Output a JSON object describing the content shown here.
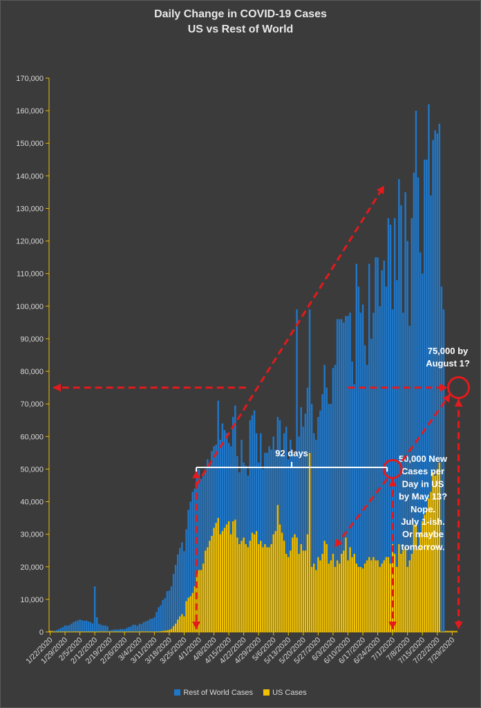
{
  "title_line1": "Daily Change in COVID-19 Cases",
  "title_line2": "US vs Rest of World",
  "colors": {
    "background": "#3b3b3b",
    "row": "#1f77c9",
    "us": "#f2c200",
    "axis": "#f2c200",
    "annotation": "#e41a1c",
    "bracket": "#ffffff"
  },
  "chart_data": {
    "type": "bar",
    "stacked": true,
    "start_date": "1/22/2020",
    "end_date": "7/31/2020",
    "ylim": [
      0,
      170000
    ],
    "yticks": [
      0,
      10000,
      20000,
      30000,
      40000,
      50000,
      60000,
      70000,
      80000,
      90000,
      100000,
      110000,
      120000,
      130000,
      140000,
      150000,
      160000,
      170000
    ],
    "ytick_labels": [
      "0",
      "10,000",
      "20,000",
      "30,000",
      "40,000",
      "50,000",
      "60,000",
      "70,000",
      "80,000",
      "90,000",
      "100,000",
      "110,000",
      "120,000",
      "130,000",
      "140,000",
      "150,000",
      "160,000",
      "170,000"
    ],
    "xtick_labels": [
      "1/22/2020",
      "1/29/2020",
      "2/5/2020",
      "2/12/2020",
      "2/19/2020",
      "2/26/2020",
      "3/4/2020",
      "3/11/2020",
      "3/18/2020",
      "3/25/2020",
      "4/1/2020",
      "4/8/2020",
      "4/15/2020",
      "4/22/2020",
      "4/29/2020",
      "5/6/2020",
      "5/13/2020",
      "5/20/2020",
      "5/27/2020",
      "6/3/2020",
      "6/10/2020",
      "6/17/2020",
      "6/24/2020",
      "7/1/2020",
      "7/8/2020",
      "7/15/2020",
      "7/22/2020",
      "7/29/2020"
    ],
    "grid": false,
    "legend_position": "bottom",
    "series": [
      {
        "name": "Rest of World Cases",
        "values": [
          100,
          200,
          300,
          600,
          800,
          1200,
          1500,
          2000,
          1900,
          2100,
          2500,
          3000,
          3300,
          3500,
          3800,
          3600,
          3400,
          3500,
          3200,
          3000,
          2600,
          14000,
          4500,
          2500,
          2200,
          2000,
          2000,
          1700,
          400,
          600,
          700,
          800,
          700,
          900,
          900,
          800,
          1200,
          1500,
          1700,
          2200,
          2200,
          1900,
          2500,
          2400,
          3000,
          3300,
          3500,
          4000,
          4100,
          4500,
          6000,
          7500,
          8000,
          9500,
          10000,
          12000,
          12000,
          13000,
          16000,
          18000,
          20000,
          21000,
          22000,
          20000,
          22000,
          27000,
          29000,
          31000,
          30000,
          32000,
          31000,
          28000,
          27000,
          25000,
          27000,
          23000,
          26000,
          25000,
          24000,
          36000,
          29000,
          33000,
          30000,
          28000,
          24000,
          27000,
          32000,
          35000,
          25000,
          22000,
          31000,
          23000,
          24000,
          22000,
          37000,
          36000,
          38000,
          30000,
          25000,
          33000,
          24000,
          28000,
          29000,
          31000,
          29000,
          30000,
          25000,
          27000,
          32000,
          24000,
          33000,
          39000,
          30000,
          34000,
          26000,
          24000,
          70000,
          36000,
          42000,
          38000,
          42000,
          45000,
          44000,
          50000,
          40000,
          40000,
          43000,
          46000,
          49000,
          54000,
          48000,
          49000,
          48000,
          57000,
          62000,
          74000,
          75000,
          72000,
          70000,
          68000,
          75000,
          72000,
          60000,
          52000,
          92000,
          86000,
          78000,
          81000,
          67000,
          60000,
          90000,
          68000,
          75000,
          93000,
          93000,
          80000,
          90000,
          92000,
          83000,
          104000,
          104000,
          72000,
          103000,
          88000,
          112000,
          107000,
          73000,
          109000,
          100000,
          72000,
          103000,
          108000,
          127000,
          114000,
          86000,
          76000,
          109000,
          107000,
          121000,
          91000,
          102000,
          106000,
          103000,
          104000,
          106000,
          99000
        ],
        "color": "#1f77c9"
      },
      {
        "name": "US Cases",
        "values": [
          0,
          0,
          0,
          0,
          0,
          0,
          0,
          0,
          0,
          0,
          0,
          0,
          0,
          0,
          0,
          0,
          0,
          0,
          0,
          0,
          0,
          0,
          0,
          0,
          0,
          0,
          0,
          0,
          0,
          0,
          0,
          0,
          0,
          0,
          0,
          0,
          0,
          0,
          0,
          0,
          0,
          0,
          0,
          0,
          0,
          0,
          0,
          0,
          0,
          0,
          100,
          100,
          200,
          300,
          400,
          500,
          700,
          1000,
          1800,
          2600,
          3800,
          4800,
          5500,
          4800,
          9500,
          10500,
          11000,
          12000,
          14000,
          18000,
          19000,
          19000,
          21000,
          25000,
          26000,
          28000,
          29500,
          32000,
          33500,
          35000,
          30000,
          31000,
          32000,
          33000,
          34000,
          30000,
          34000,
          34500,
          29000,
          27000,
          28000,
          29000,
          27000,
          26000,
          28000,
          30500,
          30000,
          31000,
          27000,
          28000,
          26000,
          27000,
          26000,
          26000,
          27000,
          30000,
          31000,
          39000,
          33000,
          30500,
          28000,
          24000,
          23000,
          25000,
          29000,
          30000,
          29000,
          24000,
          27000,
          25000,
          25000,
          30000,
          55000,
          20000,
          21000,
          19000,
          23000,
          22000,
          24000,
          28000,
          27000,
          21000,
          22000,
          24000,
          20000,
          22000,
          21000,
          24000,
          25000,
          29000,
          22000,
          26000,
          23000,
          24000,
          21000,
          20000,
          20000,
          19500,
          21000,
          22000,
          23000,
          22000,
          23000,
          22000,
          22000,
          20000,
          21000,
          22000,
          23000,
          23000,
          21000,
          27000,
          24000,
          20000,
          27000,
          24000,
          25000,
          26000,
          20000,
          22000,
          24000,
          33000,
          33000,
          25500,
          30500,
          34000,
          36000,
          38000,
          41000,
          43000,
          49000,
          48000,
          50000,
          52000
        ],
        "color": "#f2c200"
      }
    ]
  },
  "annotations": {
    "bracket_label": "92 days",
    "note_75k_line1": "75,000 by",
    "note_75k_line2": "August 1?",
    "note_50k_lines": [
      "50,000 New",
      "Cases per",
      "Day in US",
      "by May 13?",
      "Nope.",
      "July 1-ish.",
      "Or maybe",
      "tomorrow."
    ]
  },
  "legend": {
    "row_label": "Rest of World Cases",
    "us_label": "US Cases"
  }
}
